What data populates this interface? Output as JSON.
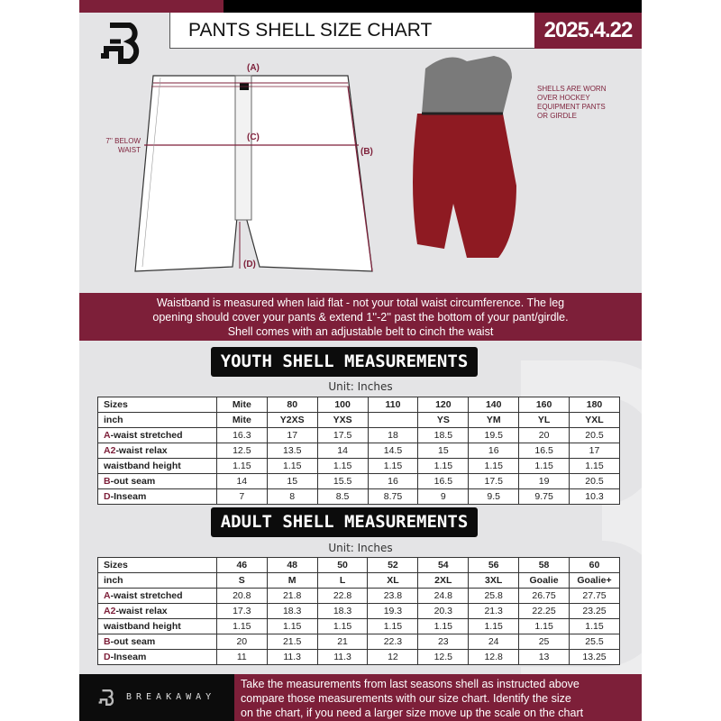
{
  "header": {
    "title": "PANTS SHELL SIZE CHART",
    "date": "2025.4.22"
  },
  "diagram": {
    "label_a": "(A)",
    "label_b": "(B)",
    "label_c": "(C)",
    "label_d": "(D)",
    "below_waist_note": [
      "7'' BELOW",
      "WAIST"
    ],
    "shell_note": [
      "SHELLS ARE WORN",
      "OVER HOCKEY",
      "EQUIPMENT PANTS",
      "OR GIRDLE"
    ]
  },
  "info_band": [
    "Waistband is measured when laid flat - not your total waist circumference. The leg",
    "opening should cover your pants & extend 1''-2'' past the bottom of your pant/girdle.",
    "Shell comes with an adjustable belt to cinch the waist"
  ],
  "youth": {
    "title": "YOUTH SHELL MEASUREMENTS",
    "unit": "Unit: Inches",
    "rows": [
      {
        "prefix": "",
        "label": "Sizes",
        "cells": [
          "Mite",
          "80",
          "100",
          "110",
          "120",
          "140",
          "160",
          "180"
        ]
      },
      {
        "prefix": "",
        "label": "inch",
        "cells": [
          "Mite",
          "Y2XS",
          "YXS",
          "",
          "YS",
          "YM",
          "YL",
          "YXL"
        ]
      },
      {
        "prefix": "A",
        "label": "-waist stretched",
        "cells": [
          "16.3",
          "17",
          "17.5",
          "18",
          "18.5",
          "19.5",
          "20",
          "20.5"
        ]
      },
      {
        "prefix": "A2",
        "label": "-waist relax",
        "cells": [
          "12.5",
          "13.5",
          "14",
          "14.5",
          "15",
          "16",
          "16.5",
          "17"
        ]
      },
      {
        "prefix": "",
        "label": "waistband height",
        "cells": [
          "1.15",
          "1.15",
          "1.15",
          "1.15",
          "1.15",
          "1.15",
          "1.15",
          "1.15"
        ]
      },
      {
        "prefix": "B",
        "label": "-out seam",
        "cells": [
          "14",
          "15",
          "15.5",
          "16",
          "16.5",
          "17.5",
          "19",
          "20.5"
        ]
      },
      {
        "prefix": "D",
        "label": "-Inseam",
        "cells": [
          "7",
          "8",
          "8.5",
          "8.75",
          "9",
          "9.5",
          "9.75",
          "10.3"
        ]
      }
    ]
  },
  "adult": {
    "title": "ADULT SHELL MEASUREMENTS",
    "unit": "Unit: Inches",
    "rows": [
      {
        "prefix": "",
        "label": "Sizes",
        "cells": [
          "46",
          "48",
          "50",
          "52",
          "54",
          "56",
          "58",
          "60"
        ]
      },
      {
        "prefix": "",
        "label": "inch",
        "cells": [
          "S",
          "M",
          "L",
          "XL",
          "2XL",
          "3XL",
          "Goalie",
          "Goalie+"
        ]
      },
      {
        "prefix": "A",
        "label": "-waist stretched",
        "cells": [
          "20.8",
          "21.8",
          "22.8",
          "23.8",
          "24.8",
          "25.8",
          "26.75",
          "27.75"
        ]
      },
      {
        "prefix": "A2",
        "label": "-waist relax",
        "cells": [
          "17.3",
          "18.3",
          "18.3",
          "19.3",
          "20.3",
          "21.3",
          "22.25",
          "23.25"
        ]
      },
      {
        "prefix": "",
        "label": "waistband height",
        "cells": [
          "1.15",
          "1.15",
          "1.15",
          "1.15",
          "1.15",
          "1.15",
          "1.15",
          "1.15"
        ]
      },
      {
        "prefix": "B",
        "label": "-out seam",
        "cells": [
          "20",
          "21.5",
          "21",
          "22.3",
          "23",
          "24",
          "25",
          "25.5"
        ]
      },
      {
        "prefix": "D",
        "label": "-Inseam",
        "cells": [
          "11",
          "11.3",
          "11.3",
          "12",
          "12.5",
          "12.8",
          "13",
          "13.25"
        ]
      }
    ]
  },
  "footer": {
    "brand": "BREAKAWAY",
    "text": [
      "Take the measurements from last seasons shell as instructed above",
      "compare those measurements  with our size chart. Identify the size",
      "on the chart, if you need a larger size move up the scale on the chart"
    ]
  },
  "colors": {
    "accent": "#7d1f39",
    "dark": "#0c0c0c",
    "background": "#e4e4e6"
  }
}
